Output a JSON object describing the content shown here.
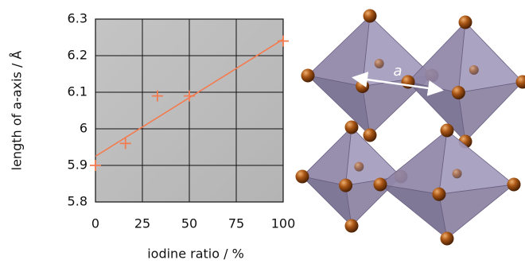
{
  "chart_data": {
    "type": "scatter",
    "xlabel": "iodine ratio / %",
    "ylabel": "length of a-axis / Å",
    "x": [
      0,
      16,
      33,
      50,
      100
    ],
    "values": [
      5.9,
      5.96,
      6.09,
      6.09,
      6.24
    ],
    "color": "#f47b50",
    "fit": {
      "x": [
        0,
        100
      ],
      "values": [
        5.925,
        6.245
      ]
    },
    "xlim": [
      0,
      100
    ],
    "xticks": [
      0,
      25,
      50,
      75,
      100
    ],
    "ylim": [
      5.8,
      6.3
    ],
    "yticks": [
      5.8,
      5.9,
      6,
      6.1,
      6.2,
      6.3
    ],
    "grid": true,
    "annotation": "a"
  }
}
